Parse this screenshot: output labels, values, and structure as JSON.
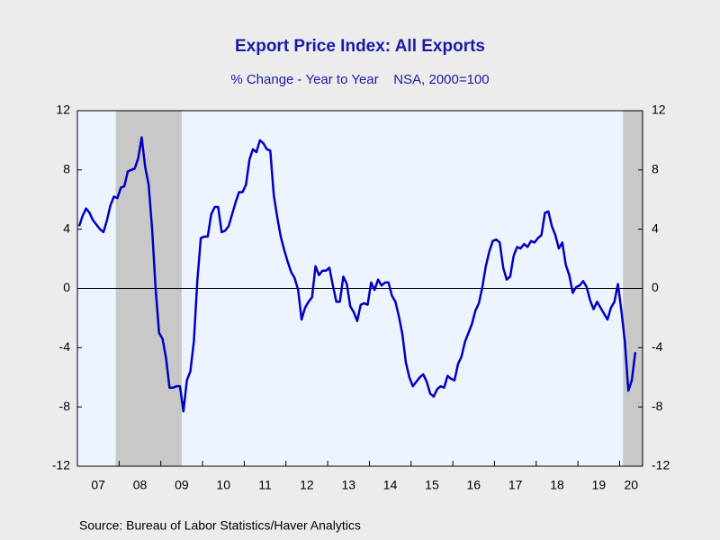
{
  "chart_data": {
    "type": "line",
    "title": "Export Price Index: All Exports",
    "subtitle": "% Change - Year to Year    NSA, 2000=100",
    "source": "Source:  Bureau of Labor Statistics/Haver Analytics",
    "x": [
      "2007-01",
      "2007-02",
      "2007-03",
      "2007-04",
      "2007-05",
      "2007-06",
      "2007-07",
      "2007-08",
      "2007-09",
      "2007-10",
      "2007-11",
      "2007-12",
      "2008-01",
      "2008-02",
      "2008-03",
      "2008-04",
      "2008-05",
      "2008-06",
      "2008-07",
      "2008-08",
      "2008-09",
      "2008-10",
      "2008-11",
      "2008-12",
      "2009-01",
      "2009-02",
      "2009-03",
      "2009-04",
      "2009-05",
      "2009-06",
      "2009-07",
      "2009-08",
      "2009-09",
      "2009-10",
      "2009-11",
      "2009-12",
      "2010-01",
      "2010-02",
      "2010-03",
      "2010-04",
      "2010-05",
      "2010-06",
      "2010-07",
      "2010-08",
      "2010-09",
      "2010-10",
      "2010-11",
      "2010-12",
      "2011-01",
      "2011-02",
      "2011-03",
      "2011-04",
      "2011-05",
      "2011-06",
      "2011-07",
      "2011-08",
      "2011-09",
      "2011-10",
      "2011-11",
      "2011-12",
      "2012-01",
      "2012-02",
      "2012-03",
      "2012-04",
      "2012-05",
      "2012-06",
      "2012-07",
      "2012-08",
      "2012-09",
      "2012-10",
      "2012-11",
      "2012-12",
      "2013-01",
      "2013-02",
      "2013-03",
      "2013-04",
      "2013-05",
      "2013-06",
      "2013-07",
      "2013-08",
      "2013-09",
      "2013-10",
      "2013-11",
      "2013-12",
      "2014-01",
      "2014-02",
      "2014-03",
      "2014-04",
      "2014-05",
      "2014-06",
      "2014-07",
      "2014-08",
      "2014-09",
      "2014-10",
      "2014-11",
      "2014-12",
      "2015-01",
      "2015-02",
      "2015-03",
      "2015-04",
      "2015-05",
      "2015-06",
      "2015-07",
      "2015-08",
      "2015-09",
      "2015-10",
      "2015-11",
      "2015-12",
      "2016-01",
      "2016-02",
      "2016-03",
      "2016-04",
      "2016-05",
      "2016-06",
      "2016-07",
      "2016-08",
      "2016-09",
      "2016-10",
      "2016-11",
      "2016-12",
      "2017-01",
      "2017-02",
      "2017-03",
      "2017-04",
      "2017-05",
      "2017-06",
      "2017-07",
      "2017-08",
      "2017-09",
      "2017-10",
      "2017-11",
      "2017-12",
      "2018-01",
      "2018-02",
      "2018-03",
      "2018-04",
      "2018-05",
      "2018-06",
      "2018-07",
      "2018-08",
      "2018-09",
      "2018-10",
      "2018-11",
      "2018-12",
      "2019-01",
      "2019-02",
      "2019-03",
      "2019-04",
      "2019-05",
      "2019-06",
      "2019-07",
      "2019-08",
      "2019-09",
      "2019-10",
      "2019-11",
      "2019-12",
      "2020-01",
      "2020-02",
      "2020-03",
      "2020-04",
      "2020-05"
    ],
    "series": [
      {
        "color": "#0000c0",
        "values": [
          4.2,
          4.9,
          5.4,
          5.1,
          4.6,
          4.3,
          4.0,
          3.8,
          4.6,
          5.6,
          6.2,
          6.1,
          6.8,
          6.9,
          7.9,
          8.0,
          8.1,
          8.8,
          10.2,
          8.2,
          7.0,
          4.0,
          0.0,
          -3.0,
          -3.4,
          -4.7,
          -6.7,
          -6.7,
          -6.6,
          -6.6,
          -8.3,
          -6.2,
          -5.6,
          -3.6,
          0.5,
          3.4,
          3.5,
          3.5,
          5.0,
          5.5,
          5.5,
          3.8,
          3.9,
          4.2,
          5.0,
          5.8,
          6.5,
          6.5,
          7.0,
          8.7,
          9.4,
          9.2,
          10.0,
          9.8,
          9.4,
          9.3,
          6.3,
          4.8,
          3.5,
          2.6,
          1.8,
          1.1,
          0.7,
          -0.1,
          -2.1,
          -1.3,
          -0.9,
          -0.6,
          1.5,
          0.9,
          1.2,
          1.2,
          1.4,
          0.2,
          -0.9,
          -0.9,
          0.8,
          0.3,
          -1.2,
          -1.6,
          -2.2,
          -1.1,
          -1.0,
          -1.1,
          0.4,
          -0.1,
          0.6,
          0.2,
          0.4,
          0.4,
          -0.5,
          -0.9,
          -1.9,
          -3.1,
          -5.0,
          -6.0,
          -6.6,
          -6.3,
          -6.0,
          -5.8,
          -6.3,
          -7.1,
          -7.3,
          -6.8,
          -6.6,
          -6.7,
          -5.9,
          -6.1,
          -6.2,
          -5.1,
          -4.6,
          -3.6,
          -3.0,
          -2.4,
          -1.5,
          -1.0,
          0.1,
          1.5,
          2.5,
          3.2,
          3.3,
          3.1,
          1.4,
          0.6,
          0.8,
          2.2,
          2.8,
          2.7,
          3.0,
          2.8,
          3.2,
          3.1,
          3.4,
          3.6,
          5.1,
          5.2,
          4.2,
          3.6,
          2.7,
          3.1,
          1.6,
          0.9,
          -0.3,
          0.1,
          0.2,
          0.5,
          0.1,
          -0.8,
          -1.4,
          -0.9,
          -1.3,
          -1.7,
          -2.1,
          -1.3,
          -0.9,
          0.3,
          -1.5,
          -3.6,
          -6.9,
          -6.2,
          -4.3
        ]
      }
    ],
    "recessions": [
      [
        2007.92,
        2009.5
      ],
      [
        2020.08,
        2020.55
      ]
    ],
    "xlim": [
      2007,
      2020.55
    ],
    "xticks": [
      {
        "value": 2007,
        "label": "07"
      },
      {
        "value": 2008,
        "label": "08"
      },
      {
        "value": 2009,
        "label": "09"
      },
      {
        "value": 2010,
        "label": "10"
      },
      {
        "value": 2011,
        "label": "11"
      },
      {
        "value": 2012,
        "label": "12"
      },
      {
        "value": 2013,
        "label": "13"
      },
      {
        "value": 2014,
        "label": "14"
      },
      {
        "value": 2015,
        "label": "15"
      },
      {
        "value": 2016,
        "label": "16"
      },
      {
        "value": 2017,
        "label": "17"
      },
      {
        "value": 2018,
        "label": "18"
      },
      {
        "value": 2019,
        "label": "19"
      },
      {
        "value": 2020,
        "label": "20"
      }
    ],
    "ylim": [
      -12,
      12
    ],
    "yticks": [
      12,
      8,
      4,
      0,
      -4,
      -8,
      -12
    ]
  }
}
